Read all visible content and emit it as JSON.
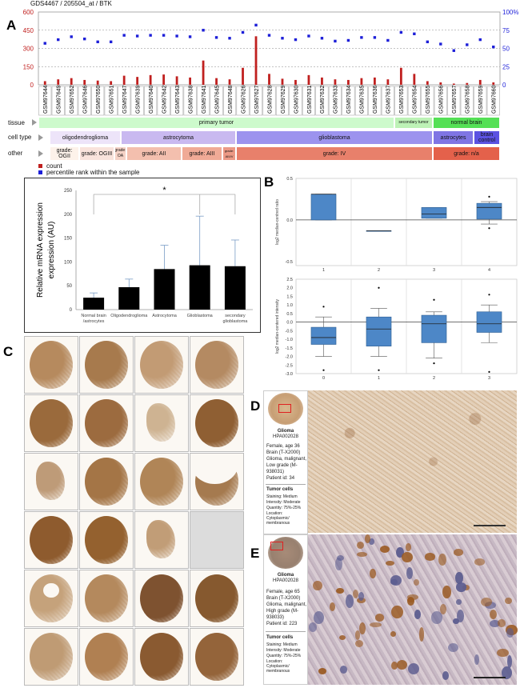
{
  "panels": {
    "A": "A",
    "B": "B",
    "C": "C",
    "D": "D",
    "E": "E"
  },
  "panelA": {
    "title": "GDS4467 / 205504_at / BTK",
    "left_ticks": [
      "600",
      "450",
      "300",
      "150",
      "0"
    ],
    "right_ticks": [
      "100%",
      "75",
      "50",
      "25",
      "0"
    ],
    "legend_count": "count",
    "legend_percentile": "percentile rank within the sample",
    "colors": {
      "count": "#c0201f",
      "percentile": "#1d1fd8"
    },
    "row_labels": {
      "tissue": "tissue",
      "cell_type": "cell type",
      "other": "other"
    },
    "tissue": [
      "primary tumor",
      "secondary tumor",
      "normal brain"
    ],
    "cell_type": [
      "oligodendroglioma",
      "astrocytoma",
      "glioblastoma",
      "astrocytes",
      "brain control"
    ],
    "other": [
      "grade: OGII",
      "grade: OGIII",
      "grade: OA",
      "grade: AII",
      "grade: AIII",
      "grade: AIII/V",
      "grade: IV",
      "grade: n/a"
    ]
  },
  "chart_data": [
    {
      "type": "bar",
      "title": "GDS4467 / 205504_at / BTK",
      "categories": [
        "GSM97644",
        "GSM97649",
        "GSM97652",
        "GSM97646",
        "GSM97650",
        "GSM97651",
        "GSM97647",
        "GSM97639",
        "GSM97640",
        "GSM97642",
        "GSM97643",
        "GSM97638",
        "GSM97641",
        "GSM97645",
        "GSM97648",
        "GSM97626",
        "GSM97627",
        "GSM97628",
        "GSM97629",
        "GSM97630",
        "GSM97631",
        "GSM97632",
        "GSM97633",
        "GSM97634",
        "GSM97635",
        "GSM97636",
        "GSM97637",
        "GSM97653",
        "GSM97654",
        "GSM97655",
        "GSM97656",
        "GSM97657",
        "GSM97658",
        "GSM97659",
        "GSM97660"
      ],
      "series": [
        {
          "name": "count",
          "axis": "left",
          "values": [
            30,
            45,
            55,
            40,
            35,
            30,
            75,
            65,
            80,
            85,
            70,
            60,
            200,
            55,
            45,
            140,
            400,
            90,
            50,
            40,
            80,
            60,
            45,
            40,
            55,
            60,
            45,
            140,
            90,
            30,
            20,
            10,
            15,
            40,
            20
          ]
        },
        {
          "name": "percentile rank within the sample",
          "axis": "right",
          "values": [
            57,
            62,
            66,
            63,
            59,
            59,
            68,
            67,
            68,
            68,
            67,
            66,
            75,
            65,
            64,
            72,
            82,
            68,
            64,
            62,
            67,
            64,
            60,
            61,
            65,
            65,
            61,
            72,
            70,
            59,
            56,
            47,
            55,
            62,
            52
          ]
        }
      ],
      "ylim_left": [
        0,
        600
      ],
      "ylim_right": [
        0,
        100
      ]
    },
    {
      "type": "bar",
      "categories": [
        "Normal brain /astrocytes",
        "Oligodendroglioma",
        "Astrocytoma",
        "Glioblastoma",
        "secondary glioblastoma"
      ],
      "values": [
        25,
        47,
        85,
        93,
        91
      ],
      "errors": [
        10,
        17,
        50,
        103,
        55
      ],
      "ylabel": "Relative mRNA expression (AU)",
      "ylim": [
        0,
        250
      ],
      "yticks": [
        "0",
        "50",
        "100",
        "150",
        "200",
        "250"
      ],
      "annotation": "*"
    },
    {
      "type": "box",
      "categories": [
        "1",
        "2",
        "3",
        "4"
      ],
      "ylabel": "log2 median-centred ratio",
      "ylim": [
        -0.55,
        0.5
      ],
      "yticks": [
        "0.5",
        "0.0",
        "-0.5"
      ],
      "boxes": [
        {
          "q1": 0.0,
          "median": 0.31,
          "q3": 0.31,
          "min": 0.0,
          "max": 0.31
        },
        {
          "q1": -0.13,
          "median": -0.13,
          "q3": -0.13,
          "min": -0.13,
          "max": -0.13
        },
        {
          "q1": 0.02,
          "median": 0.07,
          "q3": 0.15,
          "min": 0.02,
          "max": 0.15
        },
        {
          "q1": 0.01,
          "median": 0.15,
          "q3": 0.2,
          "min": -0.05,
          "max": 0.22,
          "outliers": [
            0.28,
            -0.1
          ]
        }
      ]
    },
    {
      "type": "box",
      "categories": [
        "0",
        "1",
        "2",
        "3"
      ],
      "ylabel": "log2 median-centered intensity",
      "ylim": [
        -3.0,
        2.5
      ],
      "yticks": [
        "2.5",
        "2.0",
        "1.5",
        "1.0",
        "0.5",
        "0.0",
        "-0.5",
        "-1.0",
        "-1.5",
        "-2.0",
        "-2.5",
        "-3.0"
      ],
      "boxes": [
        {
          "q1": -1.3,
          "median": -0.9,
          "q3": -0.3,
          "min": -2.0,
          "max": 0.3,
          "outliers": [
            0.9,
            -2.8
          ]
        },
        {
          "q1": -1.4,
          "median": -0.4,
          "q3": 0.3,
          "min": -2.0,
          "max": 0.8,
          "outliers": [
            2.0,
            -2.8
          ]
        },
        {
          "q1": -1.2,
          "median": -0.1,
          "q3": 0.4,
          "min": -2.1,
          "max": 0.6,
          "outliers": [
            1.3,
            -2.4
          ]
        },
        {
          "q1": -0.6,
          "median": -0.1,
          "q3": 0.6,
          "min": -1.2,
          "max": 1.0,
          "outliers": [
            1.6,
            -2.9
          ]
        }
      ]
    }
  ],
  "panelC": {
    "tiles": [
      {
        "shape": "circle",
        "stain": "#b68a5e",
        "density": 0.5
      },
      {
        "shape": "circle",
        "stain": "#a77a4d",
        "density": 0.6
      },
      {
        "shape": "circle",
        "stain": "#c29b74",
        "density": 0.4
      },
      {
        "shape": "circle",
        "stain": "#b48a62",
        "density": 0.5
      },
      {
        "shape": "circle",
        "stain": "#9a6a3c",
        "density": 0.8
      },
      {
        "shape": "circle",
        "stain": "#9c6b3f",
        "density": 0.75
      },
      {
        "shape": "fragment",
        "stain": "#c7a882",
        "density": 0.3
      },
      {
        "shape": "circle",
        "stain": "#8f5f33",
        "density": 0.85
      },
      {
        "shape": "fragment",
        "stain": "#b48b63",
        "density": 0.5
      },
      {
        "shape": "circle",
        "stain": "#a47546",
        "density": 0.65
      },
      {
        "shape": "circle",
        "stain": "#b08557",
        "density": 0.55
      },
      {
        "shape": "crescent",
        "stain": "#a57a4f",
        "density": 0.6
      },
      {
        "shape": "circle",
        "stain": "#8e5b2e",
        "density": 0.9
      },
      {
        "shape": "circle",
        "stain": "#94612f",
        "density": 0.85
      },
      {
        "shape": "fragment",
        "stain": "#b88e62",
        "density": 0.45
      },
      {
        "shape": "empty",
        "stain": "#dcdcdc",
        "density": 0
      },
      {
        "shape": "ring",
        "stain": "#c5a27b",
        "density": 0.4
      },
      {
        "shape": "circle",
        "stain": "#b4895d",
        "density": 0.55
      },
      {
        "shape": "circle",
        "stain": "#7e5230",
        "density": 0.9
      },
      {
        "shape": "circle",
        "stain": "#86592f",
        "density": 0.9
      },
      {
        "shape": "circle",
        "stain": "#bf9b74",
        "density": 0.45
      },
      {
        "shape": "circle",
        "stain": "#b08052",
        "density": 0.6
      },
      {
        "shape": "circle",
        "stain": "#8a5a31",
        "density": 0.85
      },
      {
        "shape": "circle",
        "stain": "#94643a",
        "density": 0.8
      }
    ]
  },
  "panelD": {
    "title": "Glioma",
    "id": "HPA002028",
    "lines": [
      "Female, age 36",
      "Brain (T-X2000)",
      "Glioma, malignant,",
      "Low grade (M-",
      "938031)",
      "Patient id: 34"
    ],
    "tumor_cells": "Tumor cells",
    "staining": "Staining: Medium",
    "intensity": "Intensity: Moderate",
    "quantity": "Quantity: 75%-25%",
    "location": "Location:",
    "location_value": "Cytoplasmic/ membranous"
  },
  "panelE": {
    "title": "Glioma",
    "id": "HPA002028",
    "lines": [
      "Female, age 65",
      "Brain (T-X2000)",
      "Glioma, malignant,",
      "High grade (M-",
      "938033)",
      "Patient id: 223"
    ],
    "tumor_cells": "Tumor cells",
    "staining": "Staining: Medium",
    "intensity": "Intensity: Moderate",
    "quantity": "Quantity: 75%-25%",
    "location": "Location:",
    "location_value": "Cytoplasmic/ membranous"
  }
}
